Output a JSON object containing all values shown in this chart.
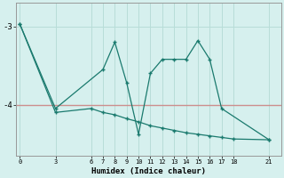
{
  "xlabel": "Humidex (Indice chaleur)",
  "bg_color": "#d6f0ee",
  "line_color": "#1a7a6e",
  "grid_color": "#b8ddd8",
  "hline_color": "#d08080",
  "hline_y": -4.0,
  "xticks": [
    0,
    3,
    6,
    7,
    8,
    9,
    10,
    11,
    12,
    13,
    14,
    15,
    16,
    17,
    18,
    21
  ],
  "yticks": [
    -3,
    -4
  ],
  "xlim": [
    -0.3,
    22
  ],
  "ylim": [
    -4.65,
    -2.7
  ],
  "series1_x": [
    0,
    3,
    7,
    8,
    9,
    10,
    11,
    12,
    13,
    14,
    15,
    16,
    17,
    21
  ],
  "series1_y": [
    -2.97,
    -4.05,
    -3.55,
    -3.2,
    -3.72,
    -4.38,
    -3.6,
    -3.42,
    -3.42,
    -3.42,
    -3.18,
    -3.42,
    -4.05,
    -4.45
  ],
  "series2_x": [
    0,
    3,
    6,
    7,
    8,
    9,
    10,
    11,
    12,
    13,
    14,
    15,
    16,
    17,
    18,
    21
  ],
  "series2_y": [
    -2.97,
    -4.1,
    -4.05,
    -4.1,
    -4.13,
    -4.18,
    -4.22,
    -4.27,
    -4.3,
    -4.33,
    -4.36,
    -4.38,
    -4.4,
    -4.42,
    -4.44,
    -4.45
  ]
}
